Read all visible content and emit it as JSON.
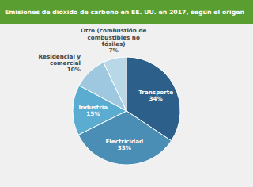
{
  "chart_data": {
    "type": "pie",
    "title": "Emisiones de dióxido de carbono en EE. UU. en 2017, según el origen",
    "categories": [
      "Transporte",
      "Electricidad",
      "Industria",
      "Residencial y comercial",
      "Otro (combustión de combustibles no fósiles)"
    ],
    "values": [
      34,
      33,
      15,
      10,
      7
    ],
    "value_labels": [
      "34%",
      "33%",
      "15%",
      "10%",
      "7%"
    ],
    "colors": [
      "#2c5f8a",
      "#4a8db5",
      "#5aacd0",
      "#9ec8e0",
      "#b8d8e8"
    ]
  }
}
